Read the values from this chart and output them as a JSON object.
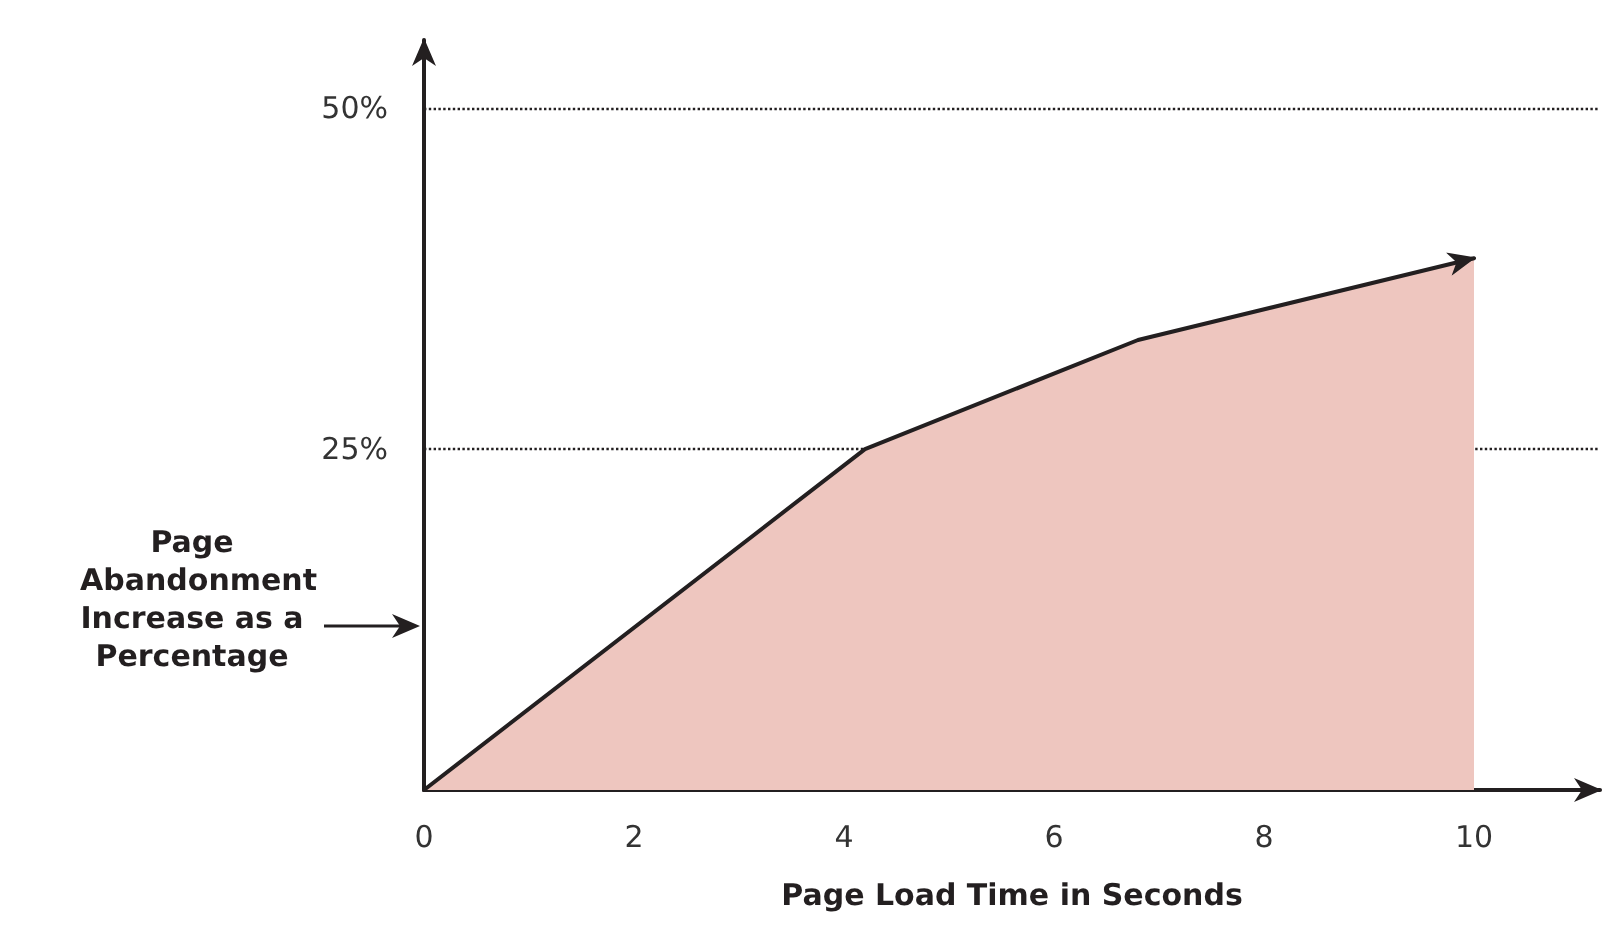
{
  "chart_data": {
    "type": "area",
    "xlabel": "Page Load Time in Seconds",
    "ylabel": "Page Abandonment Increase as a Percentage",
    "x": [
      0,
      4.2,
      6.8,
      10
    ],
    "series": [
      {
        "color": "#eec6bf",
        "values": [
          0,
          25,
          33,
          39
        ]
      }
    ],
    "xlim": [
      0,
      11.2
    ],
    "xticks": [
      0,
      2,
      4,
      6,
      8,
      10
    ],
    "ylim": [
      0,
      55
    ],
    "yticks": [
      {
        "value": 25,
        "label": "25%"
      },
      {
        "value": 50,
        "label": "50%"
      }
    ],
    "grid": "y",
    "marker": "none",
    "line_style": "solid"
  }
}
